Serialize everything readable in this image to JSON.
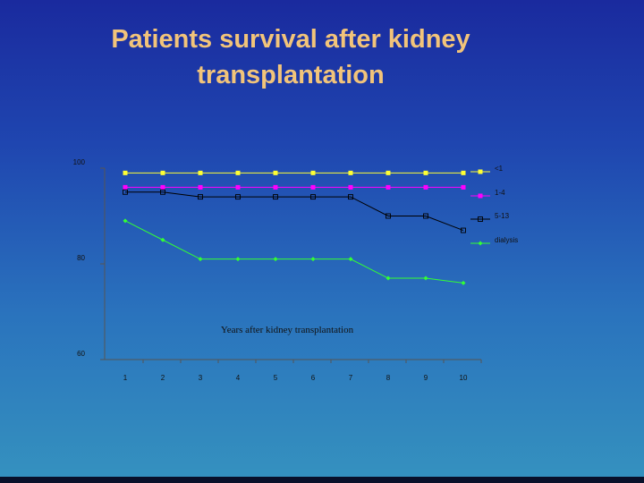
{
  "title": "Patients survival after kidney transplantation",
  "chart_data": {
    "type": "line",
    "title": "Patients survival after kidney transplantation",
    "xlabel": "Years after kidney  transplantation",
    "ylabel": "",
    "x": [
      1,
      2,
      3,
      4,
      5,
      6,
      7,
      8,
      9,
      10
    ],
    "xticks": [
      "1",
      "2",
      "3",
      "4",
      "5",
      "6",
      "7",
      "8",
      "9",
      "10"
    ],
    "yticks": [
      "100",
      "80",
      "60"
    ],
    "ylim": [
      60,
      100
    ],
    "grid": false,
    "legend": "right",
    "series": [
      {
        "name": "<1",
        "color": "#ffff33",
        "marker": "square",
        "values": [
          99,
          99,
          99,
          99,
          99,
          99,
          99,
          99,
          99,
          99
        ]
      },
      {
        "name": "1-4",
        "color": "#ff00ff",
        "marker": "square",
        "values": [
          96,
          96,
          96,
          96,
          96,
          96,
          96,
          96,
          96,
          96
        ]
      },
      {
        "name": "5-13",
        "color": "#000000",
        "marker": "hollow-square",
        "values": [
          95,
          95,
          94,
          94,
          94,
          94,
          94,
          90,
          90,
          87
        ]
      },
      {
        "name": "dialysis",
        "color": "#33ff33",
        "marker": "diamond",
        "values": [
          89,
          85,
          81,
          81,
          81,
          81,
          81,
          77,
          77,
          76
        ]
      }
    ]
  }
}
